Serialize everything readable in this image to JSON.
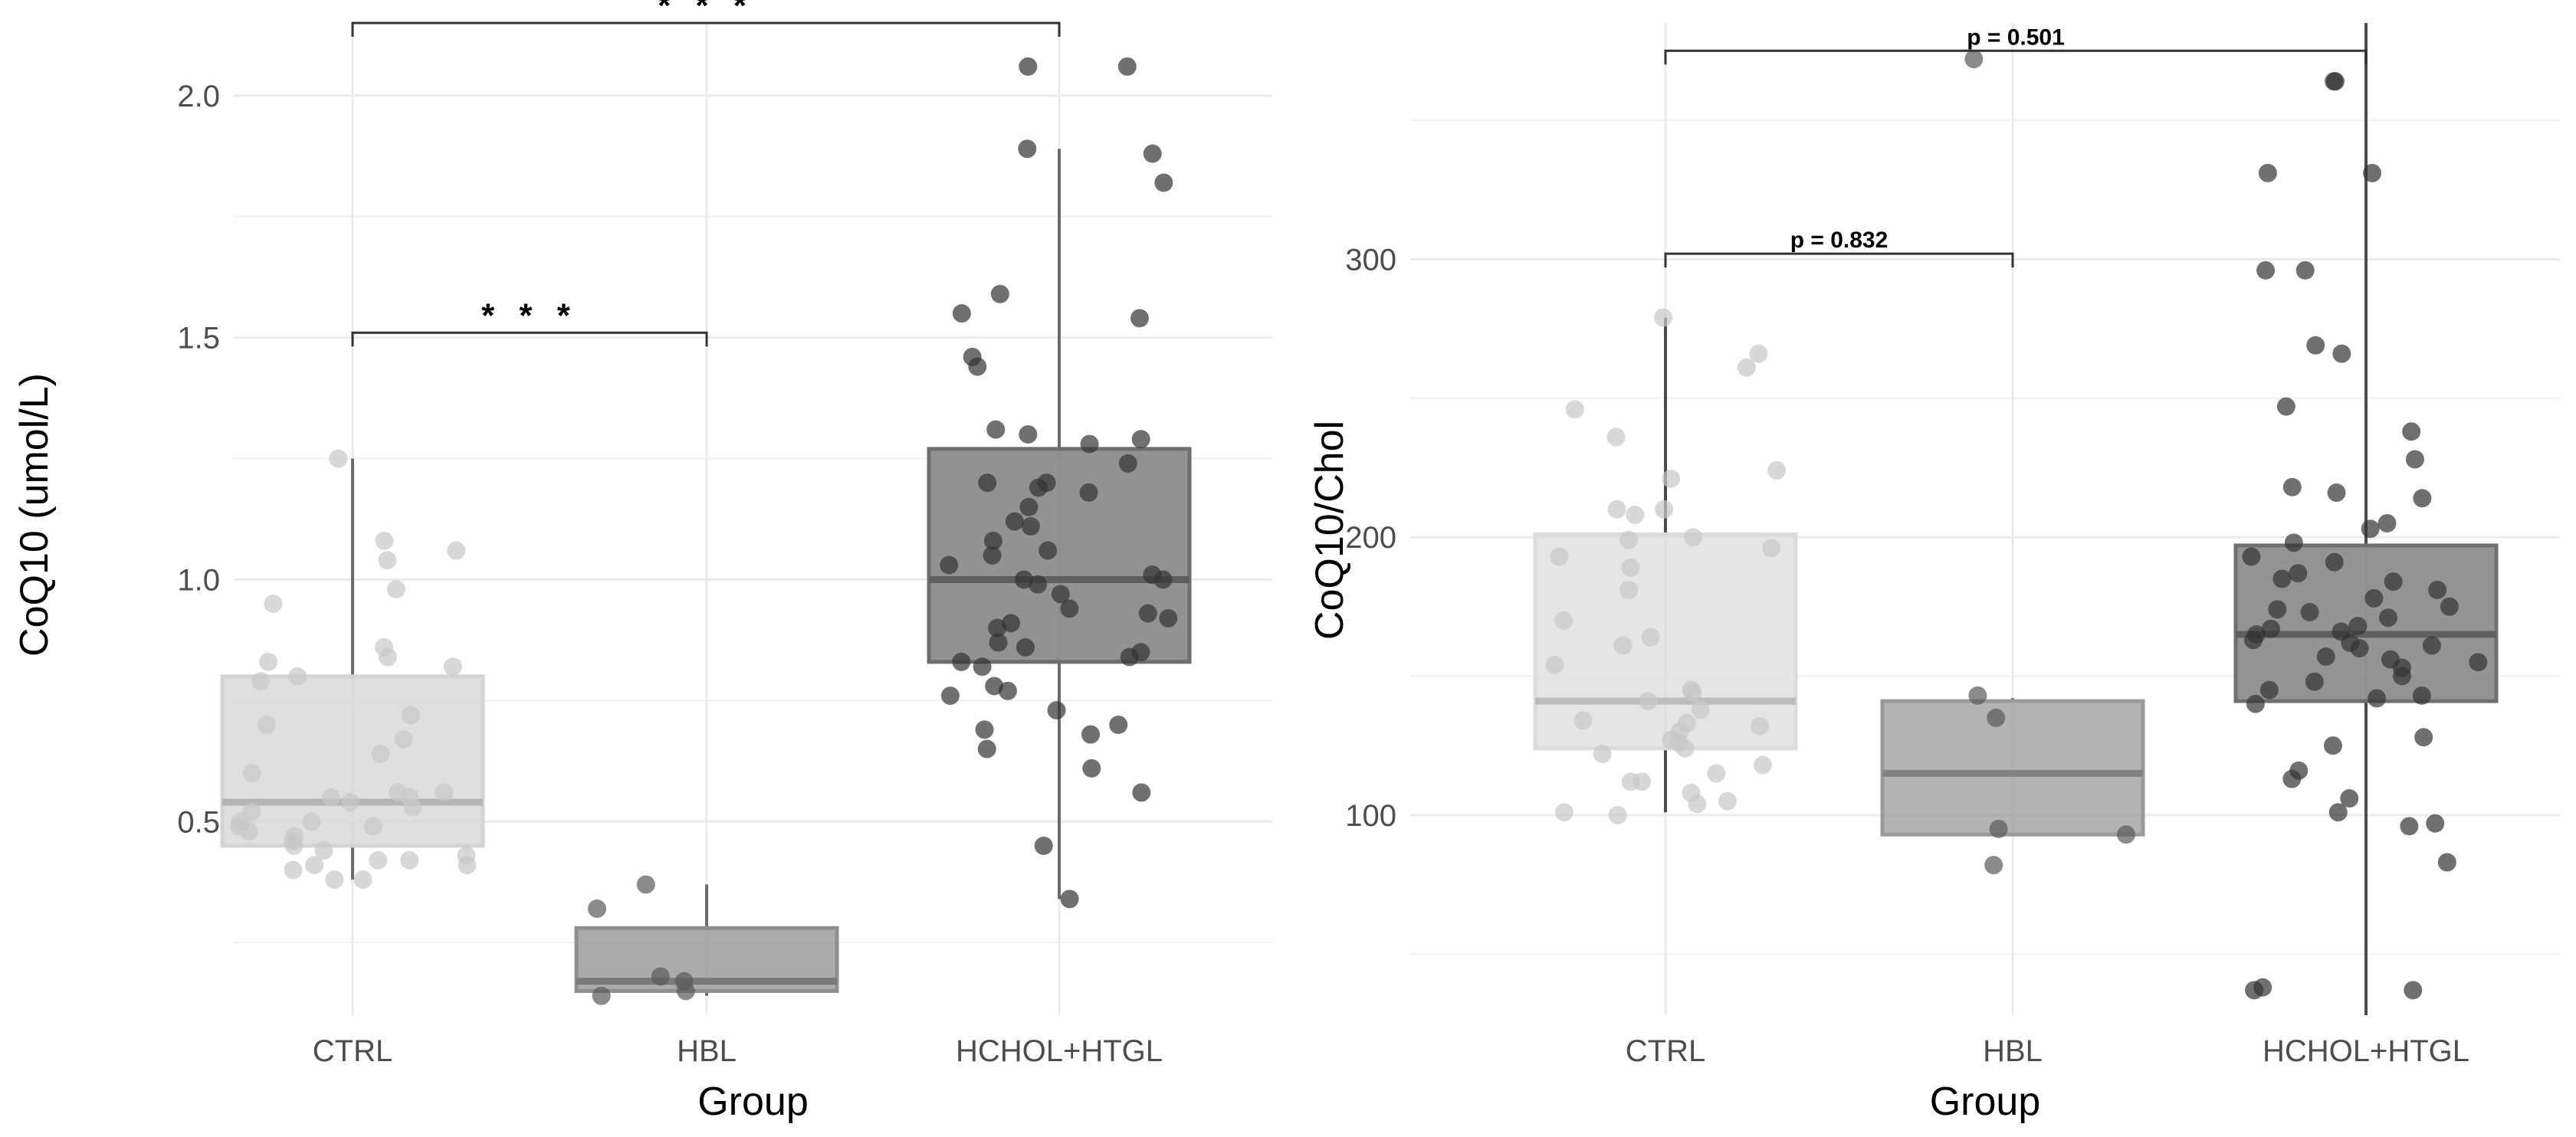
{
  "chart_data": [
    {
      "type": "box",
      "title": "",
      "xlabel": "Group",
      "ylabel": "CoQ10 (umol/L)",
      "categories": [
        "CTRL",
        "HBL",
        "HCHOL+HTGL"
      ],
      "ylim": [
        0.1,
        2.15
      ],
      "yticks": [
        0.5,
        1.0,
        1.5,
        2.0
      ],
      "ytick_labels": [
        "0.5",
        "1.0",
        "1.5",
        "2.0"
      ],
      "grid": true,
      "colors": {
        "CTRL": "#d4d4d4",
        "HBL": "#8f8f8f",
        "HCHOL+HTGL": "#6e6e6e",
        "whisker": "#555555",
        "grid": "#ebebeb"
      },
      "boxes": [
        {
          "group": "CTRL",
          "min": 0.38,
          "q1": 0.45,
          "median": 0.54,
          "q3": 0.8,
          "max": 1.25
        },
        {
          "group": "HBL",
          "min": 0.14,
          "q1": 0.15,
          "median": 0.17,
          "q3": 0.28,
          "max": 0.37
        },
        {
          "group": "HCHOL+HTGL",
          "min": 0.34,
          "q1": 0.83,
          "median": 1.0,
          "q3": 1.27,
          "max": 1.89
        }
      ],
      "points": [
        {
          "group": "CTRL",
          "values": [
            1.25,
            1.08,
            1.06,
            1.04,
            0.98,
            0.95,
            0.86,
            0.84,
            0.83,
            0.82,
            0.8,
            0.79,
            0.72,
            0.7,
            0.67,
            0.64,
            0.6,
            0.56,
            0.56,
            0.55,
            0.55,
            0.54,
            0.53,
            0.52,
            0.5,
            0.5,
            0.49,
            0.49,
            0.48,
            0.47,
            0.46,
            0.45,
            0.44,
            0.43,
            0.42,
            0.42,
            0.41,
            0.41,
            0.4,
            0.38,
            0.38
          ]
        },
        {
          "group": "HBL",
          "values": [
            0.37,
            0.32,
            0.18,
            0.17,
            0.15,
            0.14
          ]
        },
        {
          "group": "HCHOL+HTGL",
          "values": [
            2.06,
            2.06,
            1.89,
            1.88,
            1.82,
            1.59,
            1.55,
            1.54,
            1.46,
            1.44,
            1.31,
            1.3,
            1.29,
            1.28,
            1.24,
            1.2,
            1.2,
            1.19,
            1.18,
            1.15,
            1.12,
            1.11,
            1.08,
            1.06,
            1.05,
            1.03,
            1.01,
            1.0,
            1.0,
            0.99,
            0.97,
            0.94,
            0.93,
            0.92,
            0.91,
            0.9,
            0.87,
            0.86,
            0.85,
            0.84,
            0.83,
            0.82,
            0.78,
            0.77,
            0.76,
            0.73,
            0.7,
            0.69,
            0.68,
            0.65,
            0.61,
            0.56,
            0.45,
            0.34
          ]
        }
      ],
      "annotations": [
        {
          "from": "CTRL",
          "to": "HBL",
          "y": 1.51,
          "label": "* * *"
        },
        {
          "from": "CTRL",
          "to": "HCHOL+HTGL",
          "y": 2.17,
          "label": "* * *"
        }
      ]
    },
    {
      "type": "box",
      "title": "",
      "xlabel": "Group",
      "ylabel": "CoQ10/Chol",
      "categories": [
        "CTRL",
        "HBL",
        "HCHOL+HTGL"
      ],
      "ylim": [
        28,
        385
      ],
      "yticks": [
        100,
        200,
        300
      ],
      "ytick_labels": [
        "100",
        "200",
        "300"
      ],
      "grid": true,
      "colors": {
        "CTRL": "#dcdcdc",
        "HBL": "#9a9a9a",
        "HCHOL+HTGL": "#707070",
        "whisker": "#2f2f2f",
        "grid": "#ebebeb"
      },
      "boxes": [
        {
          "group": "CTRL",
          "min": 101,
          "q1": 124,
          "median": 141,
          "q3": 201,
          "max": 279
        },
        {
          "group": "HBL",
          "min": 93,
          "q1": 93,
          "median": 115,
          "q3": 141,
          "max": 142
        },
        {
          "group": "HCHOL+HTGL",
          "min": 28,
          "q1": 141,
          "median": 165,
          "q3": 197,
          "max": 385
        }
      ],
      "points": [
        {
          "group": "CTRL",
          "values": [
            279,
            266,
            261,
            246,
            236,
            224,
            221,
            210,
            210,
            208,
            200,
            199,
            196,
            193,
            189,
            181,
            170,
            164,
            161,
            154,
            145,
            144,
            141,
            138,
            134,
            133,
            132,
            130,
            127,
            126,
            124,
            122,
            118,
            115,
            112,
            112,
            108,
            105,
            104,
            101,
            100
          ]
        },
        {
          "group": "HBL",
          "values": [
            372,
            143,
            135,
            95,
            93,
            82
          ]
        },
        {
          "group": "HCHOL+HTGL",
          "values": [
            364,
            364,
            331,
            331,
            296,
            296,
            269,
            266,
            247,
            238,
            228,
            218,
            216,
            214,
            205,
            203,
            198,
            193,
            191,
            187,
            185,
            184,
            181,
            178,
            175,
            174,
            173,
            171,
            168,
            167,
            166,
            165,
            163,
            162,
            161,
            160,
            157,
            156,
            155,
            153,
            150,
            148,
            145,
            143,
            142,
            140,
            128,
            125,
            116,
            113,
            106,
            101,
            97,
            96,
            83,
            38,
            37,
            37
          ]
        }
      ],
      "annotations": [
        {
          "from": "CTRL",
          "to": "HBL",
          "y": 302,
          "label": "p = 0.832"
        },
        {
          "from": "CTRL",
          "to": "HCHOL+HTGL",
          "y": 375,
          "label": "p = 0.501"
        }
      ]
    }
  ]
}
